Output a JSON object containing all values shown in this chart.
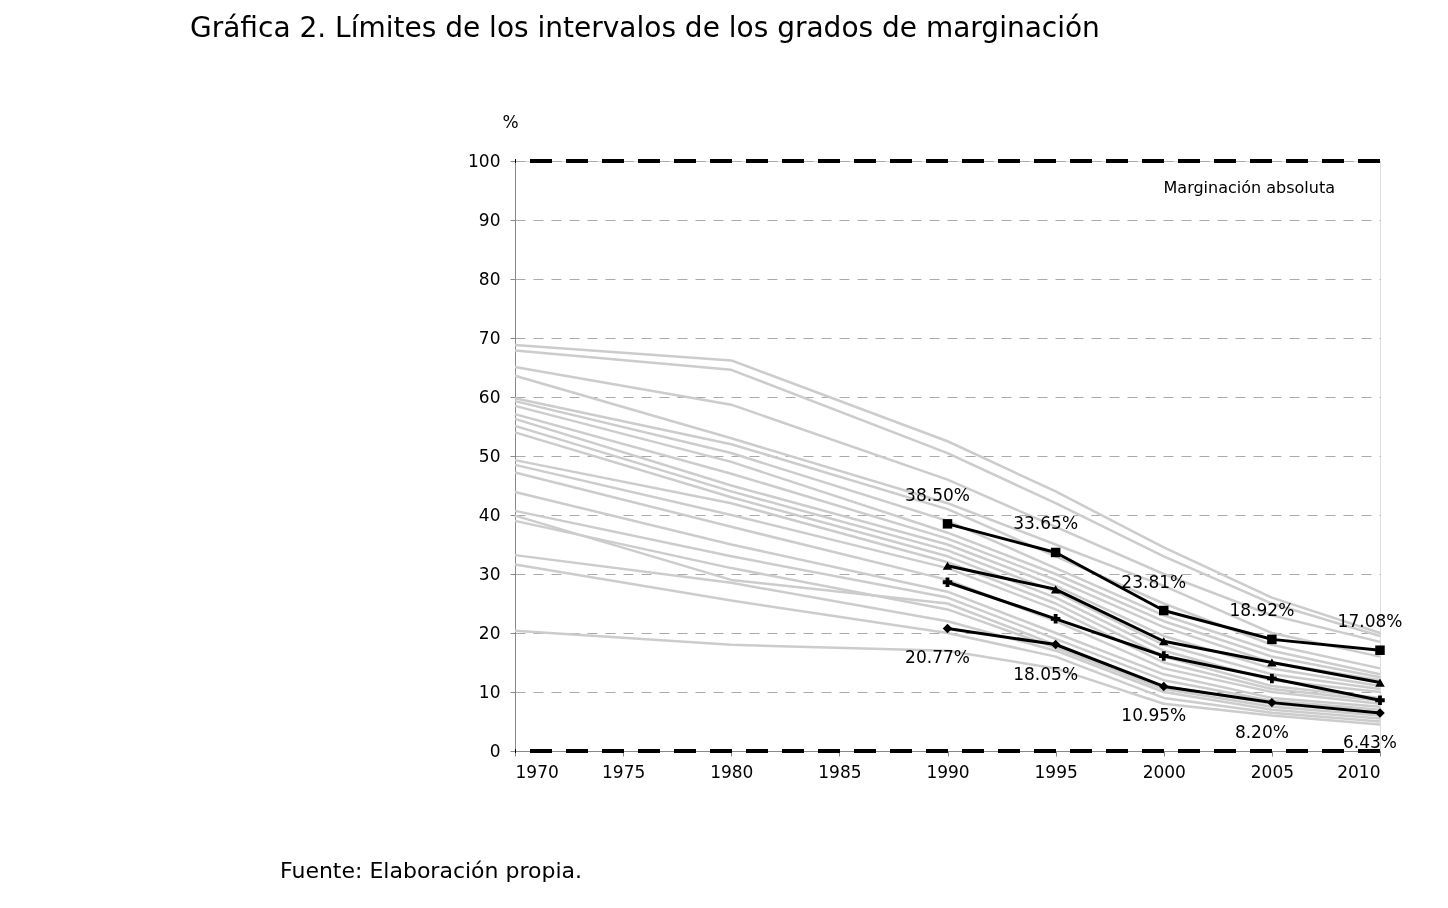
{
  "chart_data": {
    "type": "line",
    "title": "Gráfica 2. Límites de los intervalos de los grados de marginación",
    "ylabel": "%",
    "x": [
      1970,
      1980,
      1990,
      1995,
      2000,
      2005,
      2010
    ],
    "xlim": [
      1970,
      2010
    ],
    "xticks": [
      1970,
      1975,
      1980,
      1985,
      1990,
      1995,
      2000,
      2005,
      2010
    ],
    "ylim": [
      0,
      100
    ],
    "yticks": [
      0,
      10,
      20,
      30,
      40,
      50,
      60,
      70,
      80,
      90,
      100
    ],
    "grid": "y",
    "ref_lines": [
      {
        "axis": "y",
        "value": 100,
        "label": "Marginación absoluta",
        "color": "#000000",
        "line_style": "dashed"
      },
      {
        "axis": "y",
        "value": 0,
        "label": null,
        "color": "#000000",
        "line_style": "dashed"
      }
    ],
    "annotations": [
      "Fuente: Elaboración propia."
    ],
    "series": [
      {
        "color": "#cccccc",
        "marker": "none",
        "values": [
          68.8,
          66.2,
          52.5,
          44,
          34.5,
          26,
          20
        ]
      },
      {
        "color": "#cccccc",
        "marker": "none",
        "values": [
          67.9,
          64.6,
          50.5,
          42,
          33,
          25,
          19.5
        ]
      },
      {
        "color": "#cccccc",
        "marker": "none",
        "values": [
          65.1,
          58.7,
          46,
          38,
          30,
          23,
          18.5
        ]
      },
      {
        "color": "#cccccc",
        "marker": "none",
        "values": [
          63.6,
          53,
          42,
          35,
          28,
          20,
          16
        ]
      },
      {
        "color": "#cccccc",
        "marker": "none",
        "values": [
          59.8,
          52,
          41,
          33,
          25,
          18,
          14
        ]
      },
      {
        "color": "#cccccc",
        "marker": "none",
        "values": [
          59.3,
          50.5,
          39,
          31,
          23,
          17,
          13
        ]
      },
      {
        "color": "#cccccc",
        "marker": "none",
        "values": [
          58.5,
          49,
          37,
          30,
          22,
          16,
          12.5
        ]
      },
      {
        "color": "#cccccc",
        "marker": "none",
        "values": [
          57.1,
          47,
          36,
          29,
          21,
          15,
          12
        ]
      },
      {
        "color": "#cccccc",
        "marker": "none",
        "values": [
          56.3,
          45,
          35,
          28,
          19.5,
          14,
          11
        ]
      },
      {
        "color": "#cccccc",
        "marker": "none",
        "values": [
          55.1,
          44,
          34,
          27,
          18,
          13,
          10.5
        ]
      },
      {
        "color": "#cccccc",
        "marker": "none",
        "values": [
          54,
          43,
          33,
          26,
          17,
          12,
          10
        ]
      },
      {
        "color": "#cccccc",
        "marker": "none",
        "values": [
          49.3,
          42,
          32,
          25,
          16,
          11,
          9
        ]
      },
      {
        "color": "#cccccc",
        "marker": "none",
        "values": [
          48.5,
          40,
          31,
          24,
          15,
          10.5,
          8.5
        ]
      },
      {
        "color": "#cccccc",
        "marker": "none",
        "values": [
          47.2,
          38,
          29,
          22,
          14,
          10,
          8
        ]
      },
      {
        "color": "#cccccc",
        "marker": "none",
        "values": [
          43.9,
          35,
          27,
          20,
          13,
          9,
          7.5
        ]
      },
      {
        "color": "#cccccc",
        "marker": "none",
        "values": [
          40.7,
          33,
          26,
          19,
          12,
          8.5,
          7
        ]
      },
      {
        "color": "#cccccc",
        "marker": "none",
        "values": [
          39.9,
          29,
          25,
          18,
          11,
          8,
          6.5
        ]
      },
      {
        "color": "#cccccc",
        "marker": "none",
        "values": [
          39,
          31,
          24,
          17.5,
          10.5,
          7.5,
          6
        ]
      },
      {
        "color": "#cccccc",
        "marker": "none",
        "values": [
          33.2,
          28.5,
          22,
          17,
          10,
          7,
          5.5
        ]
      },
      {
        "color": "#cccccc",
        "marker": "none",
        "values": [
          31.6,
          25.5,
          20,
          16,
          9,
          6.5,
          5
        ]
      },
      {
        "color": "#cccccc",
        "marker": "none",
        "values": [
          20.4,
          18,
          17,
          14,
          8,
          6,
          4.5
        ]
      },
      {
        "color": "#000000",
        "marker": "square",
        "x": [
          1990,
          1995,
          2000,
          2005,
          2010
        ],
        "values": [
          38.5,
          33.65,
          23.81,
          18.92,
          17.08
        ],
        "value_labels": [
          "38.50%",
          "33.65%",
          "23.81%",
          "18.92%",
          "17.08%"
        ]
      },
      {
        "color": "#000000",
        "marker": "triangle",
        "x": [
          1990,
          1995,
          2000,
          2005,
          2010
        ],
        "values": [
          31.4,
          27.4,
          18.6,
          15.0,
          11.6
        ]
      },
      {
        "color": "#000000",
        "marker": "cross",
        "x": [
          1990,
          1995,
          2000,
          2005,
          2010
        ],
        "values": [
          28.6,
          22.4,
          16.1,
          12.3,
          8.6
        ]
      },
      {
        "color": "#000000",
        "marker": "diamond",
        "x": [
          1990,
          1995,
          2000,
          2005,
          2010
        ],
        "values": [
          20.77,
          18.05,
          10.95,
          8.2,
          6.43
        ],
        "value_labels": [
          "20.77%",
          "18.05%",
          "10.95%",
          "8.20%",
          "6.43%"
        ]
      }
    ]
  }
}
